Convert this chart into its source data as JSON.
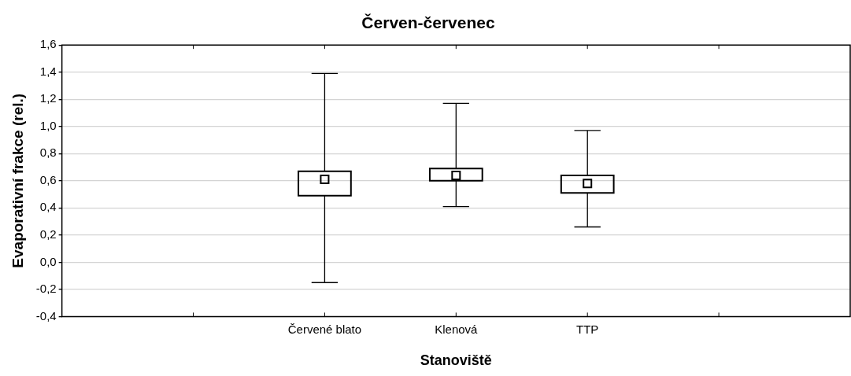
{
  "chart_data": {
    "type": "box",
    "title": "Červen-červenec",
    "xlabel": "Stanoviště",
    "ylabel": "Evaporativní frakce (rel.)",
    "categories": [
      null,
      "Červené blato",
      "Klenová",
      "TTP",
      null
    ],
    "boxes": [
      null,
      {
        "low": -0.15,
        "q1": 0.49,
        "median": 0.61,
        "q3": 0.67,
        "high": 1.39
      },
      {
        "low": 0.41,
        "q1": 0.6,
        "median": 0.64,
        "q3": 0.69,
        "high": 1.17
      },
      {
        "low": 0.26,
        "q1": 0.51,
        "median": 0.58,
        "q3": 0.64,
        "high": 0.97
      },
      null
    ],
    "color": "#000000",
    "marker": "square",
    "grid": "y",
    "ylim": [
      -0.4,
      1.6
    ],
    "yticks": [
      {
        "value": -0.4,
        "label": "-0,4"
      },
      {
        "value": -0.2,
        "label": "-0,2"
      },
      {
        "value": 0,
        "label": "0,0"
      },
      {
        "value": 0.2,
        "label": "0,2"
      },
      {
        "value": 0.4,
        "label": "0,4"
      },
      {
        "value": 0.6,
        "label": "0,6"
      },
      {
        "value": 0.8,
        "label": "0,8"
      },
      {
        "value": 1,
        "label": "1,0"
      },
      {
        "value": 1.2,
        "label": "1,2"
      },
      {
        "value": 1.4,
        "label": "1,4"
      },
      {
        "value": 1.6,
        "label": "1,6"
      }
    ]
  }
}
